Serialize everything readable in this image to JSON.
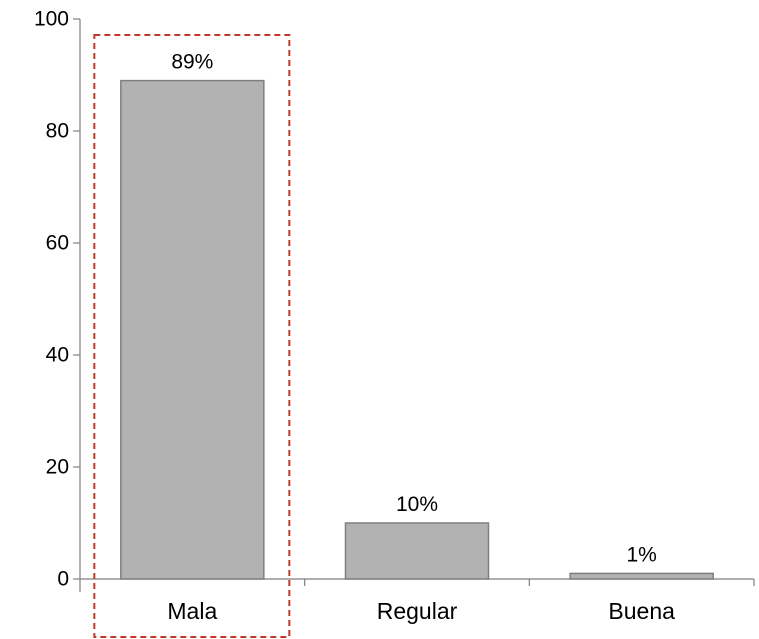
{
  "chart_data": {
    "type": "bar",
    "categories": [
      "Mala",
      "Regular",
      "Buena"
    ],
    "values": [
      89,
      10,
      1
    ],
    "data_labels": [
      "89%",
      "10%",
      "1%"
    ],
    "ylim": [
      0,
      100
    ],
    "yticks": [
      0,
      20,
      40,
      60,
      80,
      100
    ],
    "title": "",
    "xlabel": "",
    "ylabel": "",
    "grid": false,
    "highlighted_category": "Mala",
    "colors": {
      "bar_fill": "#b2b2b2",
      "bar_stroke": "#7f7f7f",
      "axis": "#7f7f7f",
      "highlight_box": "#c0392b"
    }
  }
}
